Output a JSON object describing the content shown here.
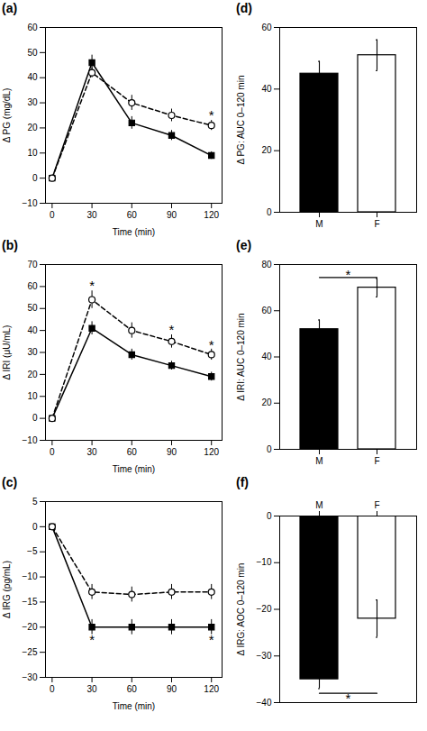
{
  "chart_data": [
    {
      "type": "line",
      "title": "(a)",
      "x": [
        0,
        30,
        60,
        90,
        120
      ],
      "xlim": [
        -5,
        128
      ],
      "xticks": [
        0,
        30,
        60,
        90,
        120
      ],
      "xlabel": "Time (min)",
      "ylabel": "Δ PG (mg/dL)",
      "ylim": [
        -10,
        60
      ],
      "yticks": [
        -10,
        0,
        10,
        20,
        30,
        40,
        50,
        60
      ],
      "series": [
        {
          "color": "black",
          "marker": "filled-square",
          "line_style": "solid",
          "values": [
            0,
            46,
            22,
            17,
            9
          ],
          "errors": [
            0.3,
            3,
            2.5,
            2,
            1.5
          ]
        },
        {
          "color": "black",
          "marker": "open-circle",
          "line_style": "dashed",
          "values": [
            0,
            42,
            30,
            25,
            21
          ],
          "errors": [
            0.3,
            2,
            3,
            2.5,
            2
          ]
        }
      ],
      "annotations": [
        {
          "text": "*",
          "x": 120,
          "y": 24
        }
      ]
    },
    {
      "type": "line",
      "title": "(b)",
      "x": [
        0,
        30,
        60,
        90,
        120
      ],
      "xlim": [
        -5,
        128
      ],
      "xticks": [
        0,
        30,
        60,
        90,
        120
      ],
      "xlabel": "Time (min)",
      "ylabel": "Δ IRI (μU/mL)",
      "ylim": [
        -10,
        70
      ],
      "yticks": [
        -10,
        0,
        10,
        20,
        30,
        40,
        50,
        60,
        70
      ],
      "series": [
        {
          "color": "black",
          "marker": "filled-square",
          "line_style": "solid",
          "values": [
            0,
            41,
            29,
            24,
            19
          ],
          "errors": [
            0.3,
            3,
            2.5,
            2,
            2
          ]
        },
        {
          "color": "black",
          "marker": "open-circle",
          "line_style": "dashed",
          "values": [
            0,
            54,
            40,
            35,
            29
          ],
          "errors": [
            0.3,
            4,
            3.5,
            3,
            2.5
          ]
        }
      ],
      "annotations": [
        {
          "text": "*",
          "x": 30,
          "y": 59
        },
        {
          "text": "*",
          "x": 90,
          "y": 39
        },
        {
          "text": "*",
          "x": 120,
          "y": 32
        }
      ]
    },
    {
      "type": "line",
      "title": "(c)",
      "x": [
        0,
        30,
        60,
        90,
        120
      ],
      "xlim": [
        -5,
        128
      ],
      "xticks": [
        0,
        30,
        60,
        90,
        120
      ],
      "xlabel": "Time (min)",
      "ylabel": "Δ IRG (pg/mL)",
      "ylim": [
        -30,
        5
      ],
      "yticks": [
        -30,
        -25,
        -20,
        -15,
        -10,
        -5,
        0,
        5
      ],
      "series": [
        {
          "color": "black",
          "marker": "filled-square",
          "line_style": "solid",
          "values": [
            0,
            -20,
            -20,
            -20,
            -20
          ],
          "errors": [
            0.3,
            1.5,
            1.5,
            1.5,
            1.5
          ]
        },
        {
          "color": "black",
          "marker": "open-circle",
          "line_style": "dashed",
          "values": [
            0,
            -13,
            -13.5,
            -13,
            -13
          ],
          "errors": [
            0.3,
            1.5,
            1.5,
            1.5,
            1.5
          ]
        }
      ],
      "annotations": [
        {
          "text": "*",
          "x": 30,
          "y": -23
        },
        {
          "text": "*",
          "x": 120,
          "y": -23
        }
      ]
    },
    {
      "type": "bar",
      "title": "(d)",
      "categories": [
        "M",
        "F"
      ],
      "values": [
        45,
        51
      ],
      "errors": [
        4,
        5
      ],
      "colors": [
        "black",
        "white"
      ],
      "ylabel": "Δ PG: AUC 0–120 min",
      "ylim": [
        0,
        60
      ],
      "yticks": [
        0,
        20,
        40,
        60
      ]
    },
    {
      "type": "bar",
      "title": "(e)",
      "categories": [
        "M",
        "F"
      ],
      "values": [
        52,
        70
      ],
      "errors": [
        4,
        4
      ],
      "colors": [
        "black",
        "white"
      ],
      "ylabel": "Δ IRI: AUC 0–120 min",
      "ylim": [
        0,
        80
      ],
      "yticks": [
        0,
        20,
        40,
        60,
        80
      ],
      "annotations": [
        {
          "text": "*",
          "x": [
            "M",
            "F"
          ],
          "y": 74.4
        }
      ]
    },
    {
      "type": "bar",
      "title": "(f)",
      "categories": [
        "M",
        "F"
      ],
      "values": [
        -35,
        -22
      ],
      "errors": [
        2,
        4
      ],
      "colors": [
        "black",
        "white"
      ],
      "ylabel": "Δ IRG: AOC 0–120 min",
      "ylim": [
        -40,
        0
      ],
      "yticks": [
        -40,
        -30,
        -20,
        -10,
        0
      ],
      "annotations": [
        {
          "text": "*",
          "x": [
            "M",
            "F"
          ],
          "y": -38
        }
      ]
    }
  ]
}
